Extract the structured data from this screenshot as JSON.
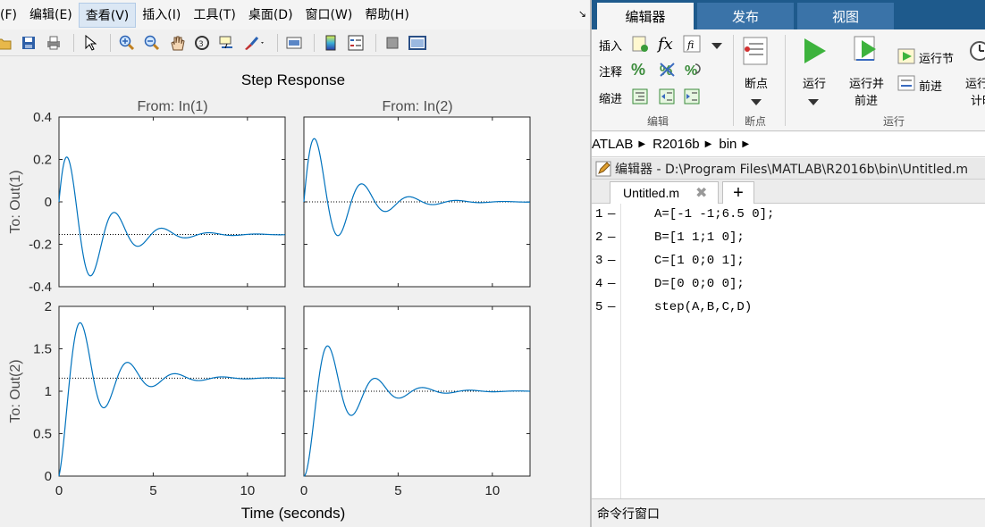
{
  "figure": {
    "menu": [
      "(F)",
      "编辑(E)",
      "查看(V)",
      "插入(I)",
      "工具(T)",
      "桌面(D)",
      "窗口(W)",
      "帮助(H)"
    ],
    "menu_active_index": 2,
    "toolbar_icons": [
      "open-file-icon",
      "save-icon",
      "print-icon",
      "pointer-icon",
      "zoom-in-icon",
      "zoom-out-icon",
      "pan-hand-icon",
      "rotate-3d-icon",
      "data-cursor-icon",
      "brush-icon",
      "link-plot-icon",
      "colorbar-icon",
      "legend-icon",
      "hide-plot-tools-icon",
      "show-plot-tools-icon"
    ],
    "corner_glyph": "↘"
  },
  "chart_data": {
    "type": "line",
    "title": "Step Response",
    "xlabel": "Time (seconds)",
    "col_titles": [
      "From: In(1)",
      "From: In(2)"
    ],
    "row_labels": [
      "To: Out(1)",
      "To: Out(2)"
    ],
    "xlim": [
      0,
      12
    ],
    "xticks": [
      0,
      5,
      10
    ],
    "row_ylims": [
      [
        -0.4,
        0.4
      ],
      [
        0,
        2
      ]
    ],
    "row_yticks": [
      [
        "0.4",
        "0.2",
        "0",
        "-0.2",
        "-0.4"
      ],
      [
        "2",
        "1.5",
        "1",
        "0.5",
        "0"
      ]
    ],
    "row_ytick_values": [
      [
        0.4,
        0.2,
        0,
        -0.2,
        -0.4
      ],
      [
        2,
        1.5,
        1,
        0.5,
        0
      ]
    ],
    "line_color": "#0072bd",
    "subplots": [
      {
        "name": "In(1) to Out(1)",
        "final_value": -0.1538,
        "peak_time": 0.4,
        "peak": 0.21,
        "trough_time": 1.65,
        "trough": -0.35
      },
      {
        "name": "In(2) to Out(1)",
        "final_value": 0.0,
        "peak_time": 0.4,
        "peak": 0.3,
        "trough_time": 1.75,
        "trough": -0.16
      },
      {
        "name": "In(1) to Out(2)",
        "final_value": 1.1538,
        "peak_time": 1.2,
        "peak": 1.8,
        "trough_time": 2.6,
        "trough": 0.82
      },
      {
        "name": "In(2) to Out(2)",
        "final_value": 1.0,
        "peak_time": 1.3,
        "peak": 1.52,
        "trough_time": 2.7,
        "trough": 0.69
      }
    ]
  },
  "editor": {
    "tabs": [
      "编辑器",
      "发布",
      "视图"
    ],
    "ribbon": {
      "insert": "插入",
      "comment": "注释",
      "indent": "缩进",
      "edit_group": "编辑",
      "breakpoints": "断点",
      "breakpoints_group": "断点",
      "run": "运行",
      "run_advance_1": "运行并",
      "run_advance_2": "前进",
      "run_section": "运行节",
      "advance": "前进",
      "run_timed": "运行",
      "run_timed_2": "计时",
      "run_group": "运行"
    },
    "breadcrumb": [
      "ATLAB",
      "R2016b",
      "bin"
    ],
    "title": "编辑器 - D:\\Program Files\\MATLAB\\R2016b\\bin\\Untitled.m",
    "file_tab": "Untitled.m",
    "new_tab": "+",
    "lines": [
      {
        "n": "1",
        "code": "A=[-1 -1;6.5 0];"
      },
      {
        "n": "2",
        "code": "B=[1 1;1 0];"
      },
      {
        "n": "3",
        "code": "C=[1 0;0 1];"
      },
      {
        "n": "4",
        "code": "D=[0 0;0 0];"
      },
      {
        "n": "5",
        "code": "step(A,B,C,D)"
      }
    ],
    "command_window": "命令行窗口"
  }
}
